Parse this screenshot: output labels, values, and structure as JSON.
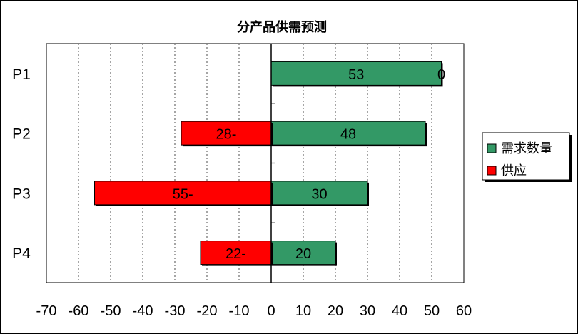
{
  "chart_data": {
    "type": "bar",
    "orientation": "horizontal",
    "title": "分产品供需预测",
    "categories": [
      "P1",
      "P2",
      "P3",
      "P4"
    ],
    "series": [
      {
        "name": "需求数量",
        "color": "#339966",
        "values": [
          53,
          48,
          30,
          20
        ],
        "labels": [
          "53",
          "48",
          "30",
          "20"
        ]
      },
      {
        "name": "供应",
        "color": "#ff0000",
        "values": [
          0,
          -28,
          -55,
          -22
        ],
        "labels": [
          "0",
          "28-",
          "55-",
          "22-"
        ]
      }
    ],
    "x_ticks": [
      "-70",
      "-60",
      "-50",
      "-40",
      "-30",
      "-20",
      "-10",
      "0",
      "10",
      "20",
      "30",
      "40",
      "50",
      "60"
    ],
    "xlim": [
      -70,
      60
    ],
    "grid": "vertical dashed",
    "legend_position": "right"
  }
}
